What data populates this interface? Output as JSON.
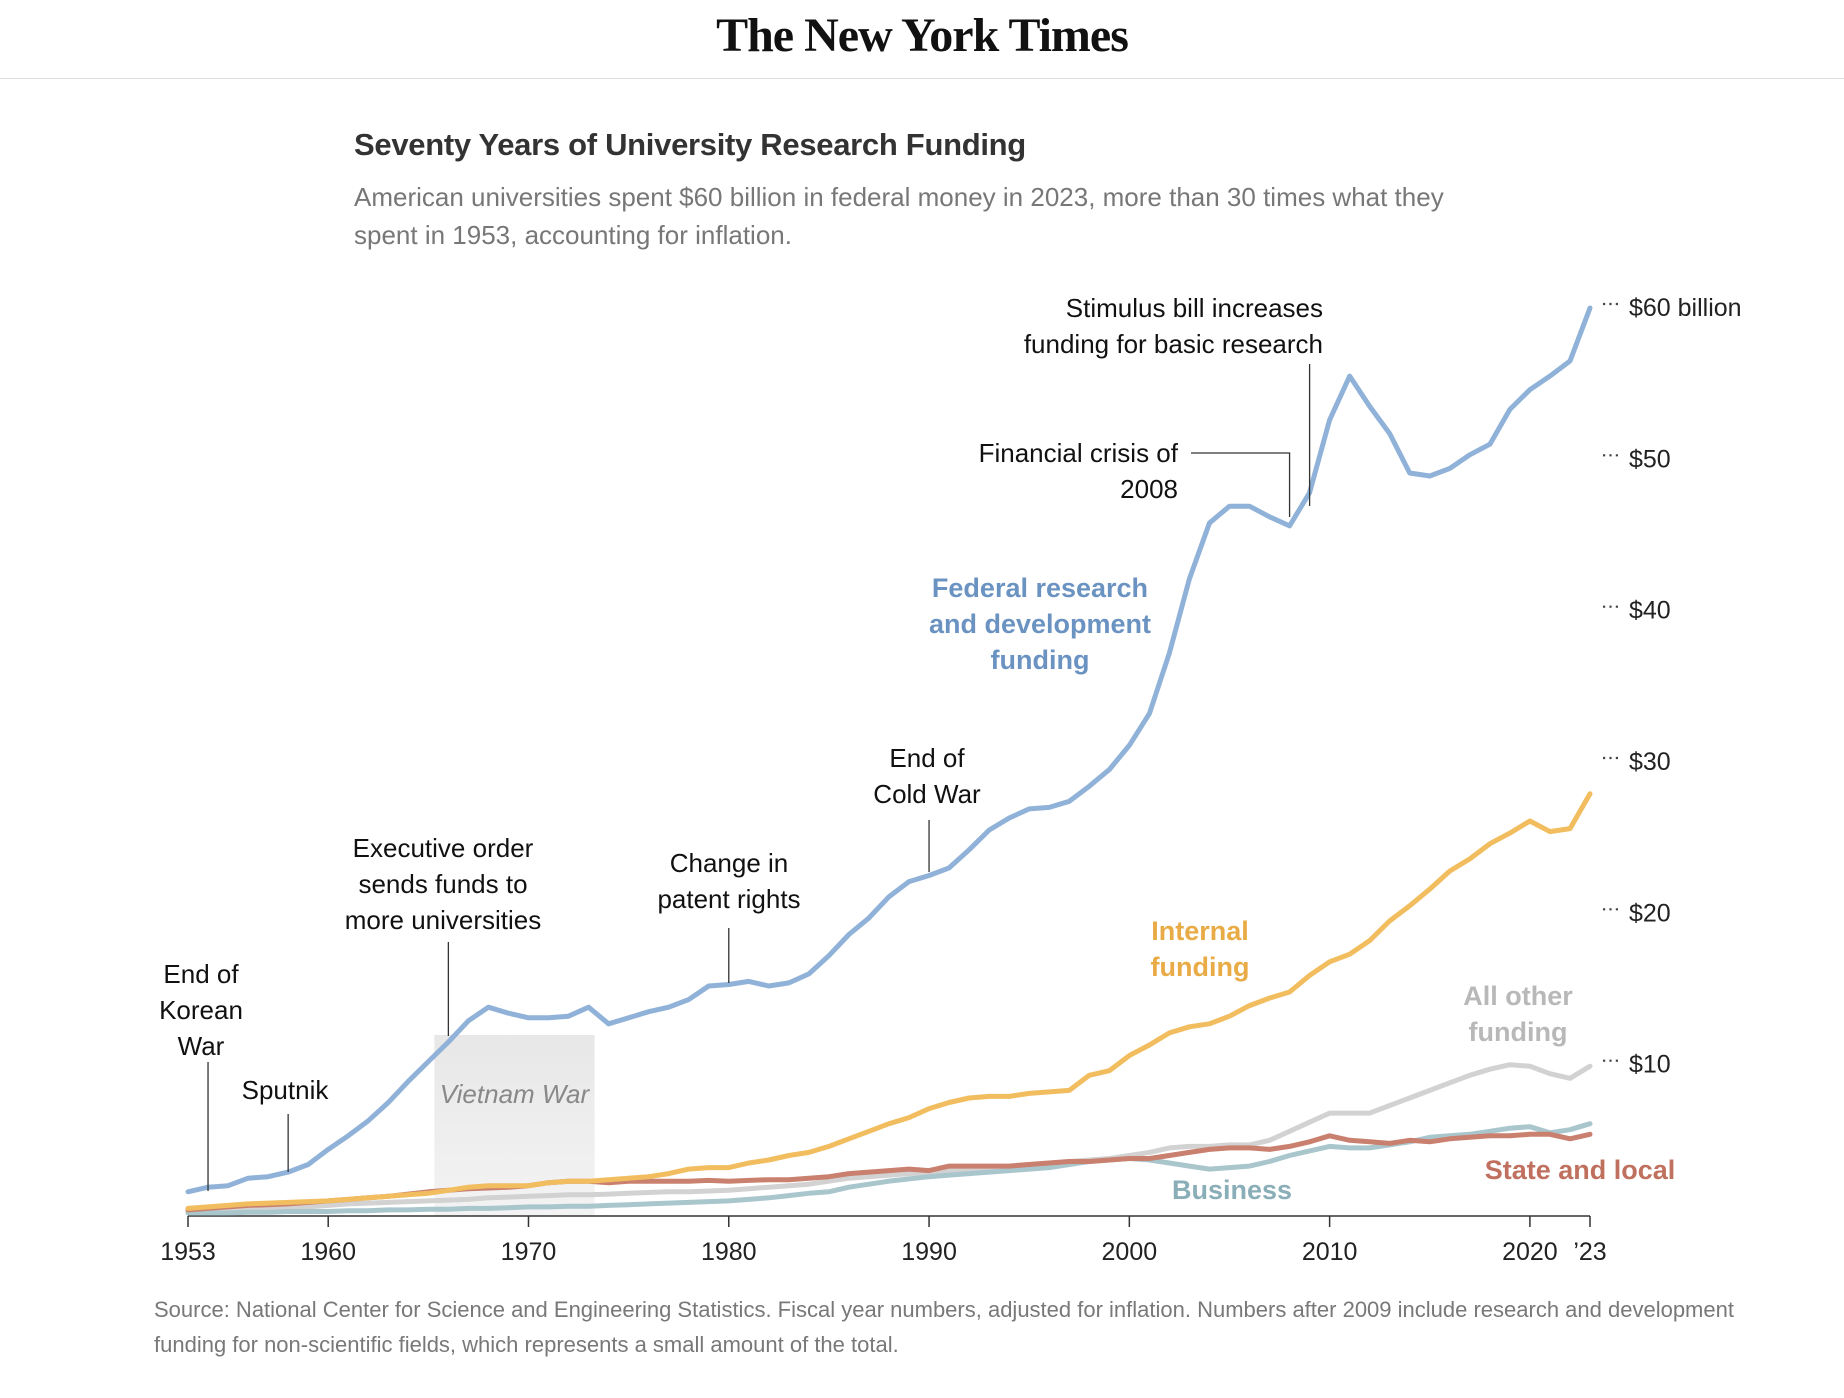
{
  "header": {
    "logo": "The New York Times"
  },
  "chart_data": {
    "type": "line",
    "title": "Seventy Years of University Research Funding",
    "subtitle": "American universities spent $60 billion in federal money in 2023, more than 30 times what they spent in 1953, accounting for inflation.",
    "source": "Source: National Center for Science and Engineering Statistics. Fiscal year numbers, adjusted for inflation. Numbers after 2009 include research and development funding for non-scientific fields, which represents a small amount of the total.",
    "x": [
      1953,
      1954,
      1955,
      1956,
      1957,
      1958,
      1959,
      1960,
      1961,
      1962,
      1963,
      1964,
      1965,
      1966,
      1967,
      1968,
      1969,
      1970,
      1971,
      1972,
      1973,
      1974,
      1975,
      1976,
      1977,
      1978,
      1979,
      1980,
      1981,
      1982,
      1983,
      1984,
      1985,
      1986,
      1987,
      1988,
      1989,
      1990,
      1991,
      1992,
      1993,
      1994,
      1995,
      1996,
      1997,
      1998,
      1999,
      2000,
      2001,
      2002,
      2003,
      2004,
      2005,
      2006,
      2007,
      2008,
      2009,
      2010,
      2011,
      2012,
      2013,
      2014,
      2015,
      2016,
      2017,
      2018,
      2019,
      2020,
      2021,
      2022,
      2023
    ],
    "xlim": [
      1953,
      2023
    ],
    "xticks": [
      1953,
      1960,
      1970,
      1980,
      1990,
      2000,
      2010,
      2020,
      {
        "value": 2023,
        "label": "’23"
      }
    ],
    "ylim": [
      0,
      60
    ],
    "yticks": [
      {
        "value": 10,
        "label": "$10"
      },
      {
        "value": 20,
        "label": "$20"
      },
      {
        "value": 30,
        "label": "$30"
      },
      {
        "value": 40,
        "label": "$40"
      },
      {
        "value": 50,
        "label": "$50"
      },
      {
        "value": 60,
        "label": "$60 billion"
      }
    ],
    "series": [
      {
        "name": "All other funding",
        "color": "#d2d2d2",
        "label_color": "#b8b8b8",
        "values": [
          0.3,
          0.35,
          0.4,
          0.45,
          0.5,
          0.55,
          0.6,
          0.7,
          0.8,
          0.85,
          0.9,
          0.95,
          1.0,
          1.05,
          1.1,
          1.2,
          1.25,
          1.3,
          1.35,
          1.4,
          1.4,
          1.45,
          1.5,
          1.55,
          1.6,
          1.6,
          1.65,
          1.7,
          1.8,
          1.9,
          2.0,
          2.1,
          2.3,
          2.5,
          2.6,
          2.7,
          2.8,
          2.9,
          3.0,
          3.1,
          3.2,
          3.3,
          3.4,
          3.5,
          3.6,
          3.7,
          3.8,
          4.0,
          4.2,
          4.5,
          4.6,
          4.6,
          4.7,
          4.7,
          5.0,
          5.6,
          6.2,
          6.8,
          6.8,
          6.8,
          7.3,
          7.8,
          8.3,
          8.8,
          9.3,
          9.7,
          10.0,
          9.9,
          9.4,
          9.1,
          9.9
        ]
      },
      {
        "name": "Business",
        "color": "#a9c6cd",
        "label_color": "#8aaeb7",
        "values": [
          0.2,
          0.2,
          0.2,
          0.25,
          0.25,
          0.3,
          0.3,
          0.3,
          0.35,
          0.35,
          0.4,
          0.4,
          0.45,
          0.45,
          0.5,
          0.5,
          0.55,
          0.6,
          0.6,
          0.65,
          0.65,
          0.7,
          0.75,
          0.8,
          0.85,
          0.9,
          0.95,
          1.0,
          1.1,
          1.2,
          1.35,
          1.5,
          1.6,
          1.9,
          2.1,
          2.3,
          2.45,
          2.6,
          2.7,
          2.8,
          2.9,
          3.0,
          3.1,
          3.2,
          3.4,
          3.6,
          3.7,
          3.8,
          3.7,
          3.5,
          3.3,
          3.1,
          3.2,
          3.3,
          3.6,
          4.0,
          4.3,
          4.6,
          4.5,
          4.5,
          4.7,
          4.9,
          5.2,
          5.3,
          5.4,
          5.6,
          5.8,
          5.9,
          5.5,
          5.7,
          6.1
        ]
      },
      {
        "name": "State and local",
        "color": "#c9806f",
        "label_color": "#c0705f",
        "values": [
          0.4,
          0.5,
          0.6,
          0.7,
          0.75,
          0.8,
          0.9,
          1.0,
          1.1,
          1.2,
          1.3,
          1.45,
          1.6,
          1.7,
          1.8,
          1.85,
          1.9,
          2.0,
          2.2,
          2.3,
          2.3,
          2.2,
          2.3,
          2.3,
          2.3,
          2.3,
          2.35,
          2.3,
          2.35,
          2.4,
          2.4,
          2.5,
          2.6,
          2.8,
          2.9,
          3.0,
          3.1,
          3.0,
          3.3,
          3.3,
          3.3,
          3.3,
          3.4,
          3.5,
          3.6,
          3.6,
          3.7,
          3.8,
          3.8,
          4.0,
          4.2,
          4.4,
          4.5,
          4.5,
          4.4,
          4.6,
          4.9,
          5.3,
          5.0,
          4.9,
          4.8,
          5.0,
          4.9,
          5.1,
          5.2,
          5.3,
          5.3,
          5.4,
          5.4,
          5.1,
          5.4
        ]
      },
      {
        "name": "Internal funding",
        "color": "#f1bd5f",
        "label_color": "#e9ab45",
        "values": [
          0.5,
          0.6,
          0.7,
          0.8,
          0.85,
          0.9,
          0.95,
          1.0,
          1.1,
          1.2,
          1.3,
          1.4,
          1.5,
          1.7,
          1.9,
          2.0,
          2.0,
          2.0,
          2.2,
          2.3,
          2.3,
          2.4,
          2.5,
          2.6,
          2.8,
          3.1,
          3.2,
          3.2,
          3.5,
          3.7,
          4.0,
          4.2,
          4.6,
          5.1,
          5.6,
          6.1,
          6.5,
          7.1,
          7.5,
          7.8,
          7.9,
          7.9,
          8.1,
          8.2,
          8.3,
          9.3,
          9.6,
          10.6,
          11.3,
          12.1,
          12.5,
          12.7,
          13.2,
          13.9,
          14.4,
          14.8,
          15.9,
          16.8,
          17.3,
          18.2,
          19.5,
          20.5,
          21.6,
          22.8,
          23.6,
          24.6,
          25.3,
          26.1,
          25.4,
          25.6,
          27.9
        ]
      },
      {
        "name": "Federal research and development funding",
        "color": "#90b2d8",
        "label_color": "#6b93c2",
        "values": [
          1.6,
          1.9,
          2.0,
          2.5,
          2.6,
          2.9,
          3.4,
          4.4,
          5.3,
          6.3,
          7.5,
          8.9,
          10.2,
          11.5,
          12.9,
          13.8,
          13.4,
          13.1,
          13.1,
          13.2,
          13.8,
          12.7,
          13.1,
          13.5,
          13.8,
          14.3,
          15.2,
          15.3,
          15.5,
          15.2,
          15.4,
          16.0,
          17.2,
          18.6,
          19.7,
          21.1,
          22.1,
          22.5,
          23.0,
          24.2,
          25.5,
          26.3,
          26.9,
          27.0,
          27.4,
          28.4,
          29.5,
          31.1,
          33.2,
          37.2,
          42.1,
          45.8,
          46.9,
          46.9,
          46.2,
          45.6,
          47.8,
          52.6,
          55.5,
          53.5,
          51.7,
          49.1,
          48.9,
          49.4,
          50.3,
          51.0,
          53.3,
          54.6,
          55.5,
          56.5,
          60.0
        ]
      }
    ],
    "shaded_periods": [
      {
        "label": "Vietnam War",
        "from": 1965.3,
        "to": 1973.3
      }
    ],
    "annotations": [
      {
        "text": "End of Korean War",
        "x": 1954
      },
      {
        "text": "Sputnik",
        "x": 1958
      },
      {
        "text": "Executive order sends funds to more universities",
        "x": 1966
      },
      {
        "text": "Change in patent rights",
        "x": 1980
      },
      {
        "text": "End of Cold War",
        "x": 1990
      },
      {
        "text": "Financial crisis of 2008",
        "x": 2008
      },
      {
        "text": "Stimulus bill increases funding for basic research",
        "x": 2009
      }
    ]
  }
}
